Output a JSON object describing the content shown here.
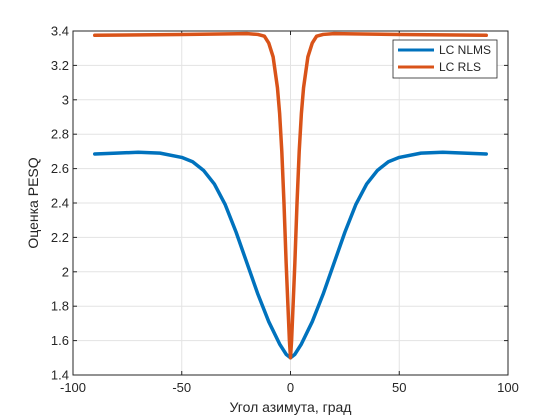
{
  "chart_data": {
    "type": "line",
    "title": "",
    "xlabel": "Угол азимута, град",
    "ylabel": "Оценка PESQ",
    "xlim": [
      -100,
      100
    ],
    "ylim": [
      1.4,
      3.4
    ],
    "xticks": [
      "-100",
      "-50",
      "0",
      "50",
      "100"
    ],
    "yticks": [
      "1.4",
      "1.6",
      "1.8",
      "2",
      "2.2",
      "2.4",
      "2.6",
      "2.8",
      "3",
      "3.2",
      "3.4"
    ],
    "grid": true,
    "legend_position": "top-right",
    "series": [
      {
        "name": "LC NLMS",
        "color": "#0072BD",
        "x": [
          -90,
          -80,
          -70,
          -60,
          -50,
          -45,
          -40,
          -35,
          -30,
          -25,
          -20,
          -15,
          -10,
          -5,
          -2,
          0,
          2,
          5,
          10,
          15,
          20,
          25,
          30,
          35,
          40,
          45,
          50,
          60,
          70,
          80,
          90
        ],
        "y": [
          2.685,
          2.69,
          2.695,
          2.69,
          2.665,
          2.64,
          2.59,
          2.51,
          2.39,
          2.23,
          2.05,
          1.87,
          1.71,
          1.58,
          1.52,
          1.5,
          1.52,
          1.58,
          1.71,
          1.87,
          2.05,
          2.23,
          2.39,
          2.51,
          2.59,
          2.64,
          2.665,
          2.69,
          2.695,
          2.69,
          2.685
        ]
      },
      {
        "name": "LC RLS",
        "color": "#D95319",
        "x": [
          -90,
          -50,
          -20,
          -15,
          -12,
          -10,
          -8,
          -6,
          -5,
          -4,
          -3,
          -2,
          -1,
          -0.5,
          0,
          0.5,
          1,
          2,
          3,
          4,
          5,
          6,
          8,
          10,
          12,
          15,
          20,
          50,
          90
        ],
        "y": [
          3.375,
          3.38,
          3.385,
          3.38,
          3.37,
          3.33,
          3.25,
          3.07,
          2.92,
          2.7,
          2.4,
          2.05,
          1.75,
          1.6,
          1.5,
          1.6,
          1.75,
          2.05,
          2.4,
          2.7,
          2.92,
          3.07,
          3.25,
          3.33,
          3.37,
          3.38,
          3.385,
          3.38,
          3.375
        ]
      }
    ]
  }
}
